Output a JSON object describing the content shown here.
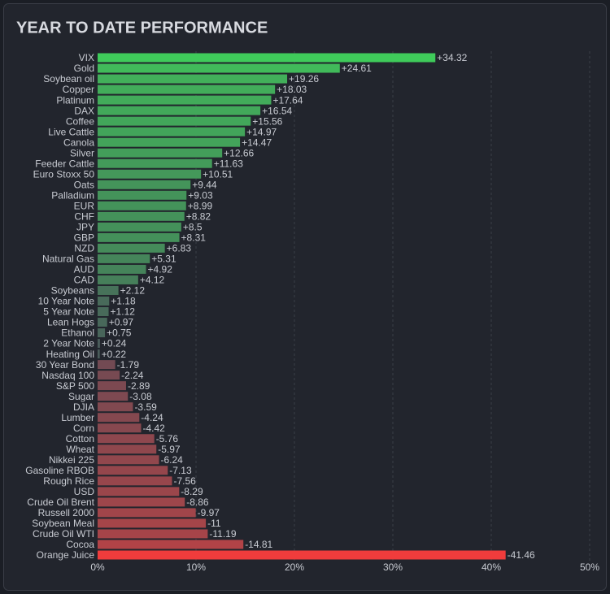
{
  "chart_data": {
    "type": "bar",
    "orientation": "horizontal",
    "title": "YEAR TO DATE PERFORMANCE",
    "categories": [
      "VIX",
      "Gold",
      "Soybean oil",
      "Copper",
      "Platinum",
      "DAX",
      "Coffee",
      "Live Cattle",
      "Canola",
      "Silver",
      "Feeder Cattle",
      "Euro Stoxx 50",
      "Oats",
      "Palladium",
      "EUR",
      "CHF",
      "JPY",
      "GBP",
      "NZD",
      "Natural Gas",
      "AUD",
      "CAD",
      "Soybeans",
      "10 Year Note",
      "5 Year Note",
      "Lean Hogs",
      "Ethanol",
      "2 Year Note",
      "Heating Oil",
      "30 Year Bond",
      "Nasdaq 100",
      "S&P 500",
      "Sugar",
      "DJIA",
      "Lumber",
      "Corn",
      "Cotton",
      "Wheat",
      "Nikkei 225",
      "Gasoline RBOB",
      "Rough Rice",
      "USD",
      "Crude Oil Brent",
      "Russell 2000",
      "Soybean Meal",
      "Crude Oil WTI",
      "Cocoa",
      "Orange Juice"
    ],
    "values": [
      34.32,
      24.61,
      19.26,
      18.03,
      17.64,
      16.54,
      15.56,
      14.97,
      14.47,
      12.66,
      11.63,
      10.51,
      9.44,
      9.03,
      8.99,
      8.82,
      8.5,
      8.31,
      6.83,
      5.31,
      4.92,
      4.12,
      2.12,
      1.18,
      1.12,
      0.97,
      0.75,
      0.24,
      0.22,
      -1.79,
      -2.24,
      -2.89,
      -3.08,
      -3.59,
      -4.24,
      -4.42,
      -5.76,
      -5.97,
      -6.24,
      -7.13,
      -7.56,
      -8.29,
      -8.86,
      -9.97,
      -11,
      -11.19,
      -14.81,
      -41.46
    ],
    "value_labels": [
      "+34.32",
      "+24.61",
      "+19.26",
      "+18.03",
      "+17.64",
      "+16.54",
      "+15.56",
      "+14.97",
      "+14.47",
      "+12.66",
      "+11.63",
      "+10.51",
      "+9.44",
      "+9.03",
      "+8.99",
      "+8.82",
      "+8.5",
      "+8.31",
      "+6.83",
      "+5.31",
      "+4.92",
      "+4.12",
      "+2.12",
      "+1.18",
      "+1.12",
      "+0.97",
      "+0.75",
      "+0.24",
      "+0.22",
      "-1.79",
      "-2.24",
      "-2.89",
      "-3.08",
      "-3.59",
      "-4.24",
      "-4.42",
      "-5.76",
      "-5.97",
      "-6.24",
      "-7.13",
      "-7.56",
      "-8.29",
      "-8.86",
      "-9.97",
      "-11",
      "-11.19",
      "-14.81",
      "-41.46"
    ],
    "positive_color": "#3ed65a",
    "negative_color": "#f03c3c",
    "neutral_color": "#4a4f5a",
    "xlim": [
      0,
      50
    ],
    "xticks": [
      {
        "value": 0,
        "label": "0%"
      },
      {
        "value": 10,
        "label": "10%"
      },
      {
        "value": 20,
        "label": "20%"
      },
      {
        "value": 30,
        "label": "30%"
      },
      {
        "value": 40,
        "label": "40%"
      },
      {
        "value": 50,
        "label": "50%"
      }
    ],
    "grid": true
  }
}
